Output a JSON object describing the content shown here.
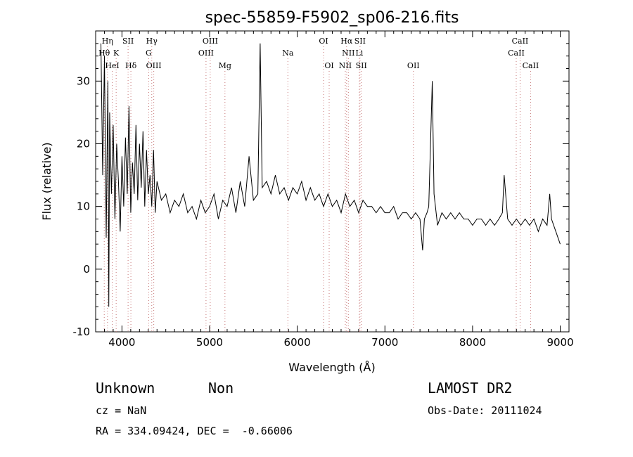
{
  "chart_data": {
    "type": "line",
    "title": "spec-55859-F5902_sp06-216.fits",
    "xlabel": "Wavelength (Å)",
    "ylabel": "Flux (relative)",
    "xlim": [
      3700,
      9100
    ],
    "ylim": [
      -10,
      38
    ],
    "xticks": [
      4000,
      5000,
      6000,
      7000,
      8000,
      9000
    ],
    "yticks": [
      -10,
      0,
      10,
      20,
      30
    ],
    "grid": false,
    "legend": "none",
    "series": [
      {
        "x": [
          3760,
          3780,
          3800,
          3820,
          3840,
          3850,
          3860,
          3880,
          3900,
          3920,
          3940,
          3960,
          3980,
          4000,
          4020,
          4040,
          4060,
          4080,
          4100,
          4120,
          4140,
          4160,
          4180,
          4200,
          4220,
          4240,
          4260,
          4280,
          4300,
          4320,
          4340,
          4360,
          4380,
          4400,
          4450,
          4500,
          4550,
          4600,
          4650,
          4700,
          4750,
          4800,
          4850,
          4900,
          4950,
          5000,
          5050,
          5100,
          5150,
          5200,
          5250,
          5300,
          5350,
          5400,
          5450,
          5500,
          5550,
          5577,
          5600,
          5650,
          5700,
          5750,
          5800,
          5850,
          5900,
          5950,
          6000,
          6050,
          6100,
          6150,
          6200,
          6250,
          6300,
          6350,
          6400,
          6450,
          6500,
          6550,
          6600,
          6650,
          6700,
          6750,
          6800,
          6850,
          6900,
          6950,
          7000,
          7050,
          7100,
          7150,
          7200,
          7250,
          7300,
          7350,
          7400,
          7430,
          7450,
          7480,
          7500,
          7520,
          7540,
          7560,
          7600,
          7650,
          7700,
          7750,
          7800,
          7850,
          7900,
          7950,
          8000,
          8050,
          8100,
          8150,
          8200,
          8250,
          8300,
          8340,
          8360,
          8400,
          8450,
          8500,
          8550,
          8600,
          8650,
          8700,
          8750,
          8800,
          8850,
          8880,
          8900,
          8950,
          9000
        ],
        "y": [
          36,
          15,
          34,
          5,
          30,
          -6,
          25,
          12,
          23,
          8,
          20,
          14,
          6,
          18,
          10,
          21,
          12,
          26,
          9,
          17,
          12,
          23,
          11,
          20,
          13,
          22,
          10,
          19,
          12,
          15,
          10,
          19,
          9,
          14,
          11,
          12,
          9,
          11,
          10,
          12,
          9,
          10,
          8,
          11,
          9,
          10,
          12,
          8,
          11,
          10,
          13,
          9,
          14,
          10,
          18,
          11,
          12,
          36,
          13,
          14,
          12,
          15,
          12,
          13,
          11,
          13,
          12,
          14,
          11,
          13,
          11,
          12,
          10,
          12,
          10,
          11,
          9,
          12,
          10,
          11,
          9,
          11,
          10,
          10,
          9,
          10,
          9,
          9,
          10,
          8,
          9,
          9,
          8,
          9,
          8,
          3,
          8,
          9,
          10,
          20,
          30,
          12,
          7,
          9,
          8,
          9,
          8,
          9,
          8,
          8,
          7,
          8,
          8,
          7,
          8,
          7,
          8,
          9,
          15,
          8,
          7,
          8,
          7,
          8,
          7,
          8,
          6,
          8,
          7,
          12,
          8,
          6,
          4
        ]
      }
    ],
    "markers": [
      {
        "label": "Hη",
        "lambda": 3835,
        "row": 0
      },
      {
        "label": "SII",
        "lambda": 4070,
        "row": 0
      },
      {
        "label": "Hγ",
        "lambda": 4340,
        "row": 0
      },
      {
        "label": "OIII",
        "lambda": 5007,
        "row": 0
      },
      {
        "label": "OI",
        "lambda": 6300,
        "row": 0
      },
      {
        "label": "Hα",
        "lambda": 6563,
        "row": 0
      },
      {
        "label": "SII",
        "lambda": 6716,
        "row": 0
      },
      {
        "label": "CaII",
        "lambda": 8542,
        "row": 0
      },
      {
        "label": "Hθ",
        "lambda": 3798,
        "row": 1
      },
      {
        "label": "K",
        "lambda": 3934,
        "row": 1
      },
      {
        "label": "G",
        "lambda": 4305,
        "row": 1
      },
      {
        "label": "OIII",
        "lambda": 4959,
        "row": 1
      },
      {
        "label": "Na",
        "lambda": 5893,
        "row": 1
      },
      {
        "label": "NII",
        "lambda": 6583,
        "row": 1
      },
      {
        "label": "Li",
        "lambda": 6708,
        "row": 1
      },
      {
        "label": "CaII",
        "lambda": 8498,
        "row": 1
      },
      {
        "label": "HeI",
        "lambda": 3889,
        "row": 2
      },
      {
        "label": "Hδ",
        "lambda": 4102,
        "row": 2
      },
      {
        "label": "OIII",
        "lambda": 4363,
        "row": 2
      },
      {
        "label": "Mg",
        "lambda": 5175,
        "row": 2
      },
      {
        "label": "OI",
        "lambda": 6364,
        "row": 2
      },
      {
        "label": "NII",
        "lambda": 6548,
        "row": 2
      },
      {
        "label": "SII",
        "lambda": 6731,
        "row": 2
      },
      {
        "label": "OII",
        "lambda": 7325,
        "row": 2
      },
      {
        "label": "CaII",
        "lambda": 8662,
        "row": 2
      }
    ]
  },
  "info": {
    "class": "Unknown",
    "subclass": "Non",
    "survey": "LAMOST DR2",
    "cz": "cz = NaN",
    "obsdate": "Obs-Date: 20111024",
    "coords": "RA = 334.09424, DEC =  -0.66006"
  }
}
